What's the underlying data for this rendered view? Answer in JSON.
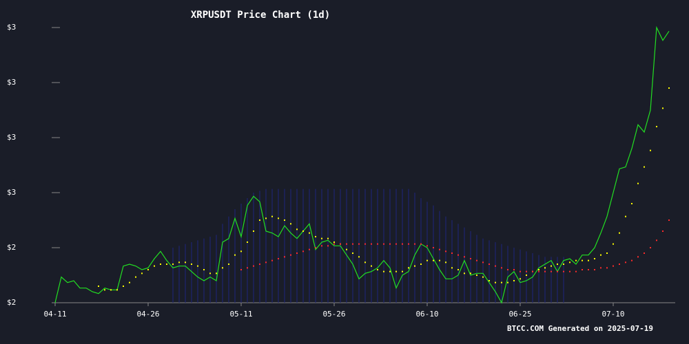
{
  "chart_data": {
    "type": "line",
    "title": "XRPUSDT Price Chart (1d)",
    "footer": "BTCC.COM Generated on 2025-07-19",
    "xlim": [
      0,
      99
    ],
    "xticks": [
      {
        "value": 0,
        "label": "04-11"
      },
      {
        "value": 15,
        "label": "04-26"
      },
      {
        "value": 30,
        "label": "05-11"
      },
      {
        "value": 45,
        "label": "05-26"
      },
      {
        "value": 60,
        "label": "06-10"
      },
      {
        "value": 75,
        "label": "06-25"
      },
      {
        "value": 90,
        "label": "07-10"
      }
    ],
    "ylim": [
      1.95,
      3.45
    ],
    "yticks": [
      {
        "value": 1.95,
        "label": "$2"
      },
      {
        "value": 2.25,
        "label": "$2"
      },
      {
        "value": 2.55,
        "label": "$3"
      },
      {
        "value": 2.85,
        "label": "$3"
      },
      {
        "value": 3.15,
        "label": "$3"
      },
      {
        "value": 3.45,
        "label": "$3"
      }
    ],
    "band": {
      "color": "#1f2470",
      "upper": [
        null,
        null,
        null,
        null,
        null,
        null,
        null,
        null,
        null,
        null,
        null,
        null,
        null,
        null,
        null,
        null,
        null,
        null,
        null,
        2.25,
        2.26,
        2.27,
        2.28,
        2.29,
        2.3,
        2.31,
        2.32,
        2.38,
        2.42,
        2.46,
        2.49,
        2.52,
        2.55,
        2.56,
        2.57,
        2.57,
        2.57,
        2.57,
        2.57,
        2.57,
        2.57,
        2.57,
        2.57,
        2.57,
        2.57,
        2.57,
        2.57,
        2.57,
        2.57,
        2.57,
        2.57,
        2.57,
        2.57,
        2.57,
        2.57,
        2.57,
        2.57,
        2.57,
        2.55,
        2.52,
        2.5,
        2.48,
        2.45,
        2.42,
        2.4,
        2.38,
        2.36,
        2.34,
        2.32,
        2.3,
        2.29,
        2.28,
        2.27,
        2.26,
        2.25,
        2.24,
        2.23,
        2.22,
        2.21,
        2.2,
        2.2,
        2.2,
        2.2,
        null,
        null,
        null,
        null,
        null,
        null,
        null,
        null,
        null,
        null,
        null,
        null,
        null,
        null,
        null,
        null,
        null
      ],
      "lower": [
        null,
        null,
        null,
        null,
        null,
        null,
        null,
        null,
        null,
        null,
        null,
        null,
        null,
        null,
        null,
        null,
        null,
        null,
        null,
        1.95,
        1.95,
        1.95,
        1.95,
        1.95,
        1.95,
        1.95,
        1.95,
        1.95,
        1.95,
        1.95,
        1.95,
        1.95,
        1.95,
        1.95,
        1.95,
        1.95,
        1.95,
        1.95,
        1.95,
        1.95,
        1.95,
        1.95,
        1.95,
        1.95,
        1.95,
        1.95,
        1.95,
        1.95,
        1.95,
        1.95,
        1.95,
        1.95,
        1.95,
        1.95,
        1.95,
        1.95,
        1.95,
        1.95,
        1.95,
        1.95,
        1.95,
        1.95,
        1.95,
        1.95,
        1.95,
        1.95,
        1.95,
        1.95,
        1.95,
        1.95,
        1.95,
        1.95,
        1.95,
        1.95,
        1.95,
        1.95,
        1.95,
        1.95,
        1.95,
        1.95,
        1.95,
        1.95,
        1.95,
        null,
        null,
        null,
        null,
        null,
        null,
        null,
        null,
        null,
        null,
        null,
        null,
        null,
        null,
        null,
        null,
        null
      ]
    },
    "series": [
      {
        "color": "#22e022",
        "style": "line",
        "values": [
          1.95,
          2.09,
          2.06,
          2.07,
          2.03,
          2.03,
          2.01,
          2.0,
          2.03,
          2.02,
          2.02,
          2.15,
          2.16,
          2.15,
          2.13,
          2.14,
          2.19,
          2.23,
          2.18,
          2.14,
          2.15,
          2.15,
          2.12,
          2.09,
          2.07,
          2.09,
          2.07,
          2.28,
          2.3,
          2.41,
          2.31,
          2.48,
          2.53,
          2.5,
          2.34,
          2.33,
          2.31,
          2.37,
          2.33,
          2.3,
          2.34,
          2.38,
          2.24,
          2.28,
          2.29,
          2.26,
          2.26,
          2.21,
          2.16,
          2.08,
          2.11,
          2.12,
          2.14,
          2.18,
          2.14,
          2.03,
          2.1,
          2.12,
          2.21,
          2.27,
          2.25,
          2.19,
          2.13,
          2.08,
          2.08,
          2.1,
          2.18,
          2.1,
          2.11,
          2.11,
          2.06,
          2.01,
          1.95,
          2.09,
          2.12,
          2.06,
          2.07,
          2.09,
          2.14,
          2.16,
          2.18,
          2.12,
          2.18,
          2.19,
          2.16,
          2.21,
          2.21,
          2.25,
          2.33,
          2.42,
          2.55,
          2.68,
          2.69,
          2.79,
          2.92,
          2.88,
          3.0,
          3.45,
          3.38,
          3.43
        ]
      },
      {
        "color": "#ffff00",
        "style": "dots",
        "values": [
          null,
          null,
          null,
          null,
          null,
          null,
          null,
          2.04,
          2.02,
          2.02,
          2.02,
          2.04,
          2.06,
          2.09,
          2.11,
          2.13,
          2.15,
          2.16,
          2.16,
          2.16,
          2.17,
          2.17,
          2.16,
          2.15,
          2.13,
          2.11,
          2.11,
          2.14,
          2.16,
          2.21,
          2.23,
          2.28,
          2.34,
          2.4,
          2.41,
          2.42,
          2.41,
          2.4,
          2.38,
          2.35,
          2.34,
          2.33,
          2.31,
          2.3,
          2.3,
          2.28,
          2.27,
          2.24,
          2.22,
          2.2,
          2.17,
          2.15,
          2.13,
          2.12,
          2.12,
          2.12,
          2.12,
          2.14,
          2.15,
          2.16,
          2.18,
          2.18,
          2.18,
          2.17,
          2.14,
          2.13,
          2.11,
          2.11,
          2.1,
          2.09,
          2.07,
          2.06,
          2.06,
          2.06,
          2.07,
          2.08,
          2.1,
          2.12,
          2.13,
          2.14,
          2.15,
          2.16,
          2.16,
          2.17,
          2.18,
          2.18,
          2.18,
          2.19,
          2.21,
          2.22,
          2.27,
          2.33,
          2.42,
          2.49,
          2.6,
          2.69,
          2.78,
          2.91,
          3.01,
          3.12
        ]
      },
      {
        "color": "#ff2a2a",
        "style": "dots",
        "values": [
          null,
          null,
          null,
          null,
          null,
          null,
          null,
          null,
          null,
          null,
          null,
          null,
          null,
          null,
          null,
          null,
          null,
          null,
          null,
          null,
          null,
          null,
          null,
          null,
          null,
          null,
          null,
          null,
          null,
          null,
          2.13,
          2.14,
          2.15,
          2.16,
          2.17,
          2.18,
          2.19,
          2.2,
          2.21,
          2.22,
          2.23,
          2.24,
          2.25,
          2.26,
          2.26,
          2.27,
          2.27,
          2.27,
          2.27,
          2.27,
          2.27,
          2.27,
          2.27,
          2.27,
          2.27,
          2.27,
          2.27,
          2.27,
          2.27,
          2.27,
          2.26,
          2.25,
          2.24,
          2.23,
          2.22,
          2.21,
          2.2,
          2.19,
          2.18,
          2.17,
          2.16,
          2.15,
          2.14,
          2.13,
          2.13,
          2.12,
          2.12,
          2.12,
          2.12,
          2.12,
          2.12,
          2.12,
          2.12,
          2.12,
          2.12,
          2.13,
          2.13,
          2.13,
          2.14,
          2.14,
          2.15,
          2.16,
          2.17,
          2.18,
          2.2,
          2.22,
          2.25,
          2.29,
          2.34,
          2.4
        ]
      }
    ]
  }
}
